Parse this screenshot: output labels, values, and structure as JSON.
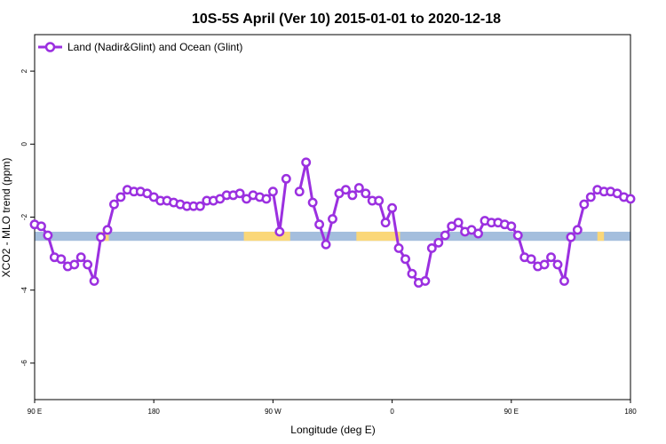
{
  "chart_data": {
    "type": "line",
    "title": "10S-5S April (Ver 10)   2015-01-01 to 2020-12-18",
    "xlabel": "Longitude (deg E)",
    "ylabel": "XCO2 - MLO trend (ppm)",
    "xlim": [
      90,
      540
    ],
    "ylim": [
      -7,
      3
    ],
    "x_ticks": [
      {
        "value": 90,
        "label": "90 E"
      },
      {
        "value": 180,
        "label": "180"
      },
      {
        "value": 270,
        "label": "90 W"
      },
      {
        "value": 360,
        "label": "0"
      },
      {
        "value": 450,
        "label": "90 E"
      },
      {
        "value": 540,
        "label": "180"
      }
    ],
    "y_ticks": [
      {
        "value": 2,
        "label": "2"
      },
      {
        "value": 0,
        "label": "0"
      },
      {
        "value": -2,
        "label": "-2"
      },
      {
        "value": -4,
        "label": "-4"
      },
      {
        "value": -6,
        "label": "-6"
      }
    ],
    "legend": {
      "placement": "top-left"
    },
    "background_band": {
      "y_range": [
        -2.65,
        -2.4
      ],
      "ocean_color": "#a4bedd",
      "land_color": "#fad778",
      "land_segments": [
        [
          248,
          283
        ],
        [
          333,
          366
        ],
        [
          140,
          146
        ],
        [
          515,
          520
        ]
      ]
    },
    "series": [
      {
        "name": "Land (Nadir&Glint) and Ocean (Glint)",
        "color": "#9b30e0",
        "x": [
          90,
          95,
          100,
          105,
          110,
          115,
          120,
          125,
          130,
          135,
          140,
          145,
          150,
          155,
          160,
          165,
          170,
          175,
          180,
          185,
          190,
          195,
          200,
          205,
          210,
          215,
          220,
          225,
          230,
          235,
          240,
          245,
          250,
          255,
          260,
          265,
          270,
          275,
          280,
          285,
          290,
          295,
          300,
          305,
          310,
          315,
          320,
          325,
          330,
          335,
          340,
          345,
          350,
          355,
          360,
          365,
          370,
          375,
          380,
          385,
          390,
          395,
          400,
          405,
          410,
          415,
          420,
          425,
          430,
          435,
          440,
          445,
          450,
          455,
          460,
          465,
          470,
          475,
          480,
          485,
          490,
          495,
          500,
          505,
          510,
          515,
          520,
          525,
          530,
          535,
          540
        ],
        "y": [
          -2.2,
          -2.25,
          -2.5,
          -3.1,
          -3.15,
          -3.35,
          -3.3,
          -3.1,
          -3.3,
          -3.75,
          -2.55,
          -2.35,
          -1.65,
          -1.45,
          -1.25,
          -1.3,
          -1.3,
          -1.35,
          -1.45,
          -1.55,
          -1.55,
          -1.6,
          -1.65,
          -1.7,
          -1.7,
          -1.7,
          -1.55,
          -1.55,
          -1.5,
          -1.4,
          -1.4,
          -1.35,
          -1.5,
          -1.4,
          -1.45,
          -1.5,
          -1.3,
          -2.4,
          -0.95,
          null,
          -1.3,
          -0.5,
          -1.6,
          -2.2,
          -2.75,
          -2.05,
          -1.35,
          -1.25,
          -1.4,
          -1.2,
          -1.35,
          -1.55,
          -1.55,
          -2.15,
          -1.75,
          -2.85,
          -3.15,
          -3.55,
          -3.8,
          -3.75,
          -2.85,
          -2.7,
          -2.5,
          -2.25,
          -2.15,
          -2.4,
          -2.35,
          -2.45,
          -2.1,
          -2.15,
          -2.15,
          -2.2,
          -2.25,
          -2.5,
          -3.1,
          -3.15,
          -3.35,
          -3.3,
          -3.1,
          -3.3,
          -3.75,
          -2.55,
          -2.35,
          -1.65,
          -1.45,
          -1.25,
          -1.3,
          -1.3,
          -1.35,
          -1.45,
          -1.5
        ]
      }
    ]
  }
}
